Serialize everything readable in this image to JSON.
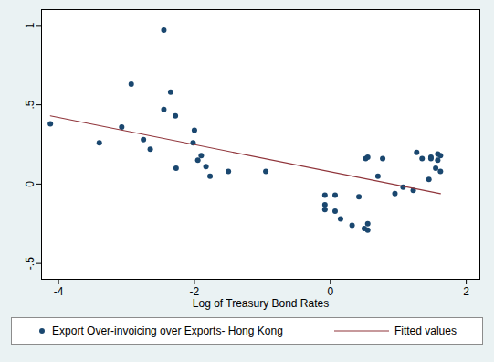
{
  "chart_data": {
    "type": "scatter",
    "x_label": "Log of Treasury Bond Rates",
    "xlim": [
      -4.25,
      2.2
    ],
    "xticks": [
      -4,
      -2,
      0,
      2
    ],
    "ylim": [
      -0.6,
      1.1
    ],
    "yticks": [
      {
        "value": -0.5,
        "label": "-.5"
      },
      0,
      {
        "value": 0.5,
        "label": ".5"
      },
      1
    ],
    "grid": false,
    "legend": "bottom",
    "series": [
      {
        "name": "Export Over-invoicing over Exports- Hong Kong",
        "type": "scatter",
        "color": "#1a476f",
        "marker": "circle",
        "x": [
          -4.12,
          -3.4,
          -3.07,
          -2.93,
          -2.75,
          -2.65,
          -2.45,
          -2.45,
          -2.35,
          -2.28,
          -2.27,
          -2.0,
          -2.02,
          -1.95,
          -1.9,
          -1.83,
          -1.77,
          -1.5,
          -0.95,
          -0.08,
          -0.08,
          -0.08,
          0.07,
          0.07,
          0.15,
          0.32,
          0.42,
          0.5,
          0.52,
          0.55,
          0.55,
          0.55,
          0.7,
          0.77,
          0.95,
          1.07,
          1.22,
          1.27,
          1.35,
          1.45,
          1.48,
          1.55,
          1.58,
          1.58,
          1.62,
          1.62,
          1.48
        ],
        "values": [
          0.38,
          0.26,
          0.36,
          0.63,
          0.28,
          0.22,
          0.97,
          0.47,
          0.58,
          0.43,
          0.1,
          0.34,
          0.26,
          0.15,
          0.18,
          0.11,
          0.05,
          0.08,
          0.08,
          -0.07,
          -0.13,
          -0.16,
          -0.07,
          -0.17,
          -0.22,
          -0.26,
          -0.08,
          -0.28,
          0.16,
          0.17,
          -0.29,
          -0.25,
          0.05,
          0.16,
          -0.06,
          -0.02,
          -0.04,
          0.2,
          0.16,
          0.03,
          0.17,
          0.1,
          0.15,
          0.19,
          0.18,
          0.08,
          0.16
        ]
      },
      {
        "name": "Fitted values",
        "type": "line",
        "color": "#90353b",
        "line_style": "solid",
        "x": [
          -4.12,
          1.62
        ],
        "values": [
          0.43,
          -0.06
        ]
      }
    ]
  }
}
